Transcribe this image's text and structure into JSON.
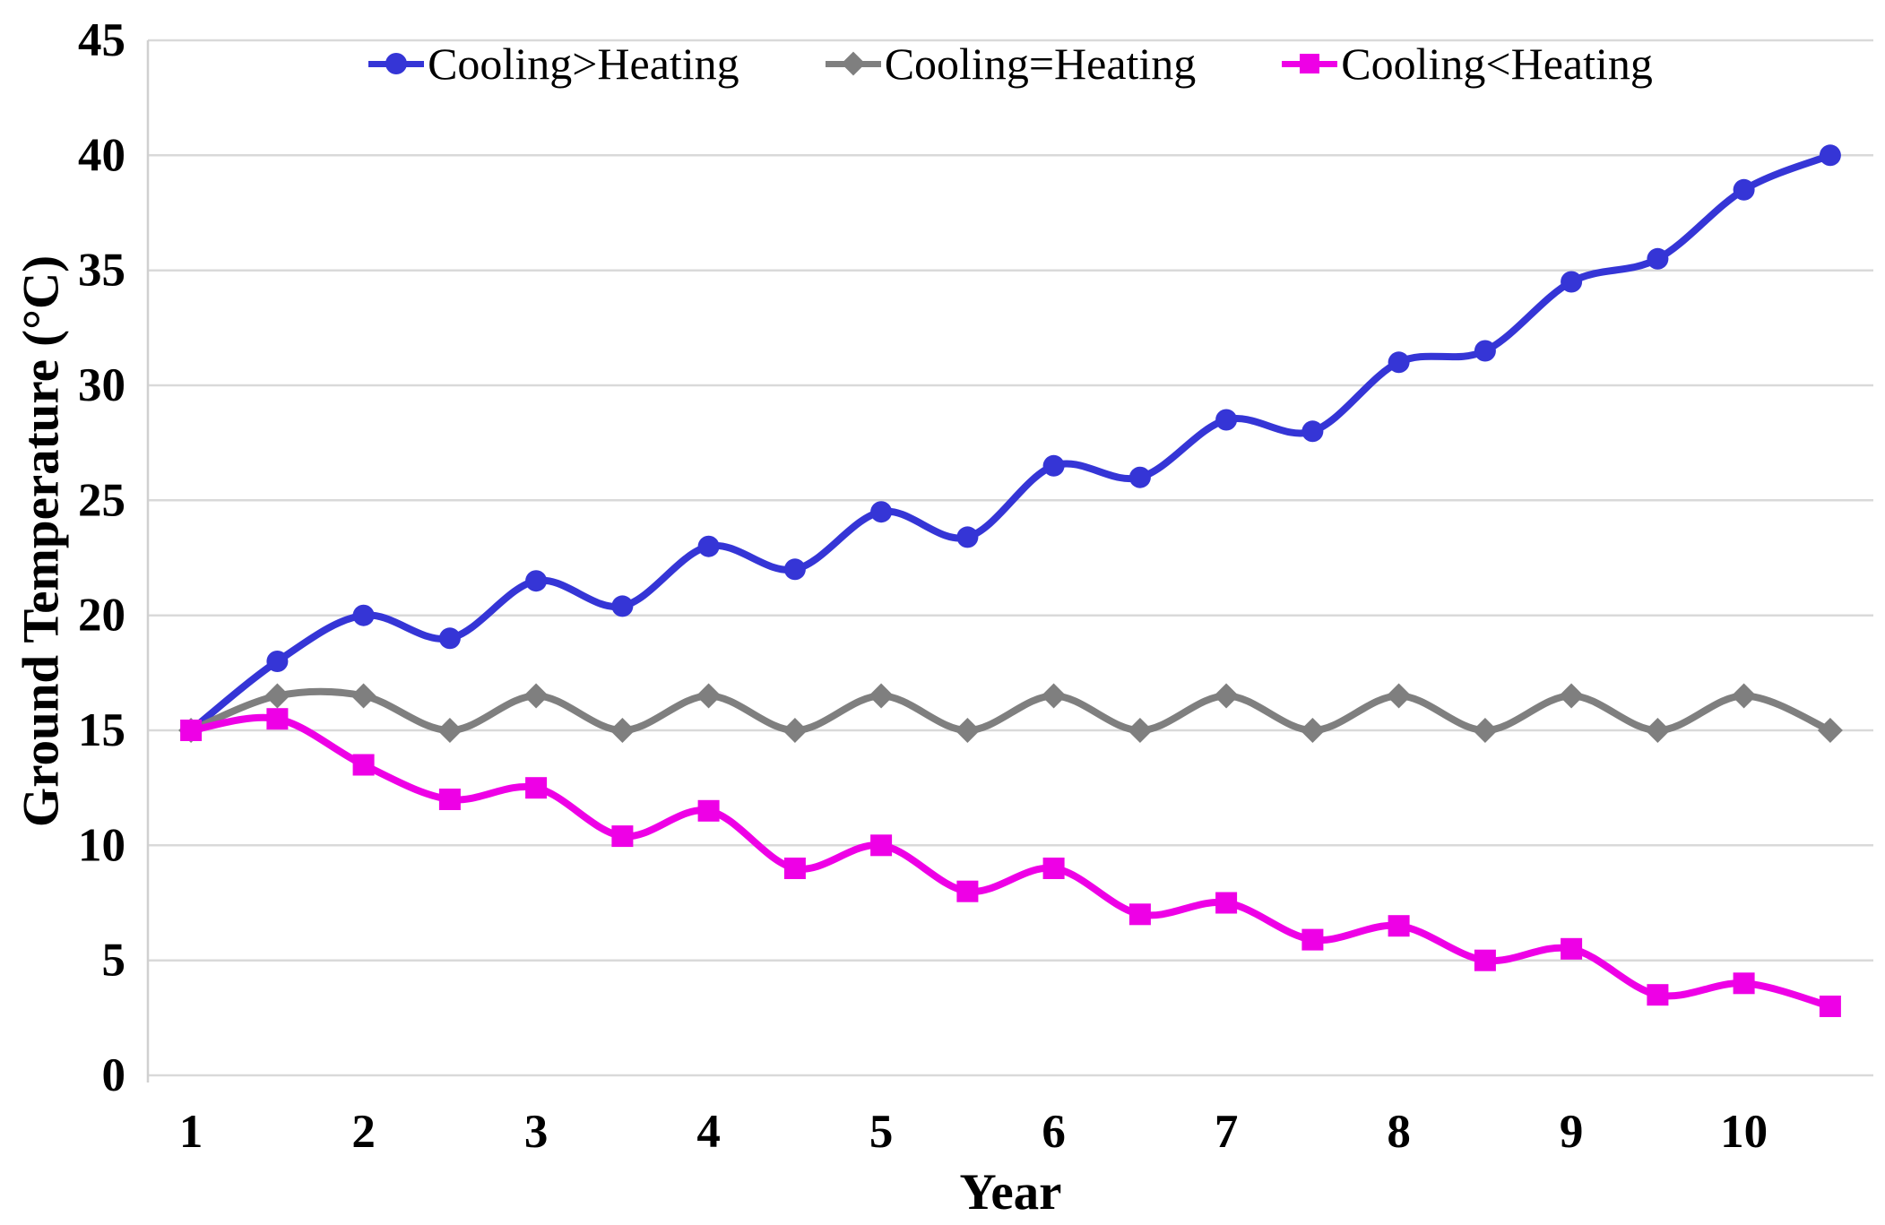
{
  "figure": {
    "x_axis_title": "Year",
    "y_axis_title": "Ground Temperature (°C)"
  },
  "colors": {
    "background": "#FFFFFF",
    "grid": "#D9D9D9",
    "axis": "#D0D0D0",
    "text": "#000000"
  },
  "chart_data": {
    "type": "line",
    "title": "",
    "xlabel": "Year",
    "ylabel": "Ground Temperature (°C)",
    "line_style": "smooth",
    "grid": true,
    "legend_position": "top",
    "ylim": [
      0,
      45
    ],
    "y_ticks": [
      0,
      5,
      10,
      15,
      20,
      25,
      30,
      35,
      40,
      45
    ],
    "x_tick_labels": [
      1,
      2,
      3,
      4,
      5,
      6,
      7,
      8,
      9,
      10
    ],
    "x": [
      1,
      1.5,
      2,
      2.5,
      3,
      3.5,
      4,
      4.5,
      5,
      5.5,
      6,
      6.5,
      7,
      7.5,
      8,
      8.5,
      9,
      9.5,
      10,
      10.5
    ],
    "series": [
      {
        "name": "Cooling>Heating",
        "color": "#3535D6",
        "marker": "circle",
        "values": [
          15,
          18,
          20,
          19,
          21.5,
          20.4,
          23,
          22,
          24.5,
          23.4,
          26.5,
          26,
          28.5,
          28,
          31,
          31.5,
          34.5,
          35.5,
          38.5,
          40
        ]
      },
      {
        "name": "Cooling=Heating",
        "color": "#7F7F7F",
        "marker": "diamond",
        "values": [
          15,
          16.5,
          16.5,
          15,
          16.5,
          15,
          16.5,
          15,
          16.5,
          15,
          16.5,
          15,
          16.5,
          15,
          16.5,
          15,
          16.5,
          15,
          16.5,
          15
        ]
      },
      {
        "name": "Cooling<Heating",
        "color": "#EE00E6",
        "marker": "square",
        "values": [
          15,
          15.5,
          13.5,
          12,
          12.5,
          10.4,
          11.5,
          9,
          10,
          8,
          9,
          7,
          7.5,
          5.9,
          6.5,
          5,
          5.5,
          3.5,
          4,
          3
        ]
      }
    ]
  }
}
